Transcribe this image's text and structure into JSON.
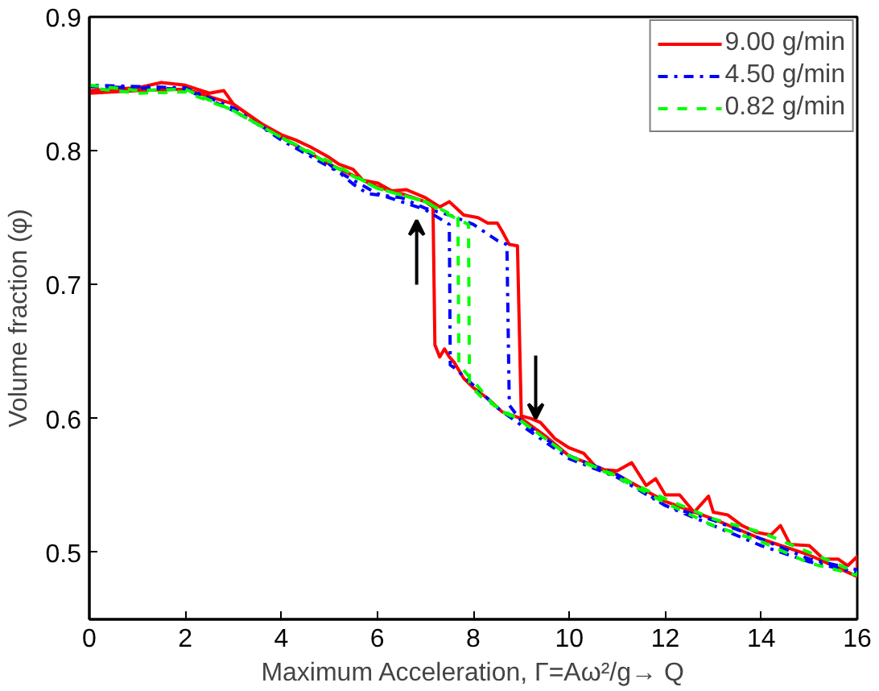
{
  "chart_data": {
    "type": "line",
    "xlabel": "Maximum Acceleration, Γ=Aω²/g→ Q",
    "ylabel": "Volume fraction (φ)",
    "xlim": [
      0,
      16
    ],
    "ylim": [
      0.45,
      0.9
    ],
    "xticks": [
      0,
      2,
      4,
      6,
      8,
      10,
      12,
      14,
      16
    ],
    "yticks": [
      0.5,
      0.6,
      0.7,
      0.8,
      0.9
    ],
    "grid": false,
    "legend": "top right",
    "marker": "none",
    "series": [
      {
        "name": "9.00 g/min",
        "color": "#ff0000",
        "line_style": "solid",
        "x": [
          0,
          0.5,
          1,
          1.5,
          2,
          2.5,
          2.8,
          3,
          3.5,
          4,
          4.3,
          4.6,
          5,
          5.2,
          5.5,
          5.7,
          6,
          6.3,
          6.6,
          7,
          7.3,
          7.5,
          7.8,
          8.1,
          8.3,
          8.5,
          8.6,
          8.75,
          8.92,
          9.0,
          9.2,
          9.4,
          9.7,
          10.0,
          10.3,
          10.6,
          11.0,
          11.3,
          11.6,
          11.8,
          12.0,
          12.3,
          12.6,
          12.9,
          13.0,
          13.3,
          13.6,
          13.9,
          14.2,
          14.4,
          14.6,
          15.0,
          15.3,
          15.6,
          15.8,
          16,
          16,
          15,
          14,
          13,
          12,
          11,
          10,
          9.5,
          9,
          8.6,
          8.3,
          8.0,
          7.8,
          7.6,
          7.5,
          7.4,
          7.3,
          7.2,
          7.16,
          7.0,
          6.5,
          6,
          5,
          4,
          3,
          2,
          1,
          0
        ],
        "values": [
          0.845,
          0.846,
          0.847,
          0.851,
          0.849,
          0.843,
          0.845,
          0.835,
          0.822,
          0.812,
          0.808,
          0.803,
          0.795,
          0.79,
          0.786,
          0.778,
          0.776,
          0.77,
          0.771,
          0.765,
          0.758,
          0.762,
          0.752,
          0.75,
          0.746,
          0.746,
          0.74,
          0.73,
          0.729,
          0.602,
          0.6,
          0.597,
          0.585,
          0.578,
          0.574,
          0.562,
          0.561,
          0.567,
          0.55,
          0.555,
          0.543,
          0.543,
          0.53,
          0.542,
          0.53,
          0.528,
          0.52,
          0.515,
          0.513,
          0.52,
          0.506,
          0.505,
          0.495,
          0.495,
          0.49,
          0.497,
          0.482,
          0.498,
          0.51,
          0.525,
          0.538,
          0.558,
          0.572,
          0.587,
          0.6,
          0.605,
          0.615,
          0.623,
          0.63,
          0.642,
          0.646,
          0.652,
          0.646,
          0.655,
          0.758,
          0.762,
          0.768,
          0.773,
          0.79,
          0.81,
          0.835,
          0.846,
          0.845,
          0.843
        ]
      },
      {
        "name": "4.50 g/min",
        "color": "#0000ff",
        "line_style": "dashdot",
        "x": [
          0,
          1,
          2,
          3,
          4,
          5,
          5.5,
          5.8,
          6.5,
          7.0,
          7.5,
          8.0,
          8.5,
          8.7,
          8.75,
          9.0,
          9.5,
          10,
          11,
          12,
          13,
          14,
          15,
          16,
          16,
          15,
          14,
          13,
          12,
          11,
          10,
          9,
          8.5,
          8,
          7.6,
          7.52,
          7.5,
          7,
          6,
          5,
          4,
          3,
          2,
          1,
          0
        ],
        "values": [
          0.848,
          0.847,
          0.846,
          0.83,
          0.81,
          0.79,
          0.775,
          0.768,
          0.765,
          0.757,
          0.752,
          0.745,
          0.733,
          0.73,
          0.61,
          0.598,
          0.585,
          0.572,
          0.558,
          0.535,
          0.524,
          0.51,
          0.495,
          0.487,
          0.485,
          0.493,
          0.505,
          0.52,
          0.535,
          0.556,
          0.57,
          0.595,
          0.608,
          0.625,
          0.638,
          0.64,
          0.745,
          0.756,
          0.768,
          0.788,
          0.808,
          0.832,
          0.847,
          0.848,
          0.849
        ]
      },
      {
        "name": "0.82 g/min",
        "color": "#00ff00",
        "line_style": "dashed",
        "x": [
          0,
          1,
          2,
          3,
          4,
          5,
          6,
          7,
          7.5,
          7.9,
          7.92,
          8.2,
          9,
          10,
          11,
          12,
          13,
          14,
          15,
          16,
          16,
          15,
          14,
          13,
          12,
          11,
          10,
          9,
          8.5,
          8.0,
          7.7,
          7.68,
          7,
          6,
          5,
          4,
          3,
          2,
          1,
          0
        ],
        "values": [
          0.849,
          0.845,
          0.846,
          0.83,
          0.81,
          0.792,
          0.772,
          0.762,
          0.752,
          0.745,
          0.625,
          0.615,
          0.598,
          0.572,
          0.557,
          0.54,
          0.525,
          0.515,
          0.5,
          0.485,
          0.483,
          0.492,
          0.508,
          0.52,
          0.537,
          0.556,
          0.572,
          0.598,
          0.607,
          0.628,
          0.64,
          0.75,
          0.762,
          0.772,
          0.79,
          0.81,
          0.83,
          0.844,
          0.843,
          0.847
        ]
      }
    ]
  }
}
